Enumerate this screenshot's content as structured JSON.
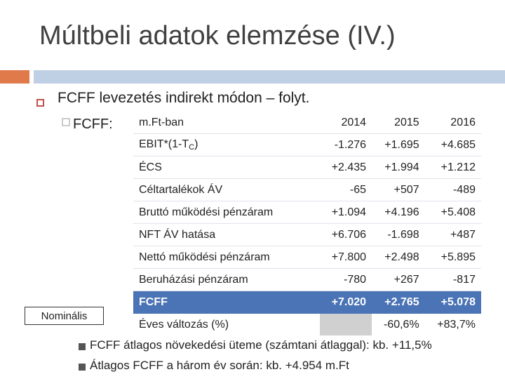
{
  "slide": {
    "title": "Múltbeli adatok elemzése (IV.)",
    "level1_text": "FCFF levezetés indirekt módon – folyt.",
    "level2_text": "FCFF:",
    "side_label": "Nominális"
  },
  "table": {
    "header": {
      "label": "m.Ft-ban",
      "years": [
        "2014",
        "2015",
        "2016"
      ]
    },
    "rows": [
      {
        "label_main": "EBIT*(1-T",
        "label_sub": "C",
        "label_tail": ")",
        "values": [
          "-1.276",
          "+1.695",
          "+4.685"
        ]
      },
      {
        "label": "ÉCS",
        "values": [
          "+2.435",
          "+1.994",
          "+1.212"
        ]
      },
      {
        "label": "Céltartalékok ÁV",
        "values": [
          "-65",
          "+507",
          "-489"
        ]
      },
      {
        "label": "Bruttó működési pénzáram",
        "values": [
          "+1.094",
          "+4.196",
          "+5.408"
        ]
      },
      {
        "label": "NFT ÁV hatása",
        "values": [
          "+6.706",
          "-1.698",
          "+487"
        ]
      },
      {
        "label": "Nettó működési pénzáram",
        "values": [
          "+7.800",
          "+2.498",
          "+5.895"
        ]
      },
      {
        "label": "Beruházási pénzáram",
        "values": [
          "-780",
          "+267",
          "-817"
        ]
      },
      {
        "label": "FCFF",
        "values": [
          "+7.020",
          "+2.765",
          "+5.078"
        ]
      },
      {
        "label": "Éves változás (%)",
        "values": [
          "",
          "-60,6%",
          "+83,7%"
        ]
      }
    ]
  },
  "notes": [
    "FCFF átlagos növekedési üteme (számtani átlaggal): kb. +11,5%",
    "Átlagos FCFF a három év során: kb. +4.954 m.Ft"
  ],
  "colors": {
    "accent_orange": "#e17a4a",
    "accent_blue_bar": "#bfd0e4",
    "highlight_row": "#4a74b5"
  },
  "icons": {
    "level1_bullet": "hollow-square-bullet",
    "level2_bullet": "checkbox-bullet",
    "note_bullet": "filled-square-bullet"
  }
}
